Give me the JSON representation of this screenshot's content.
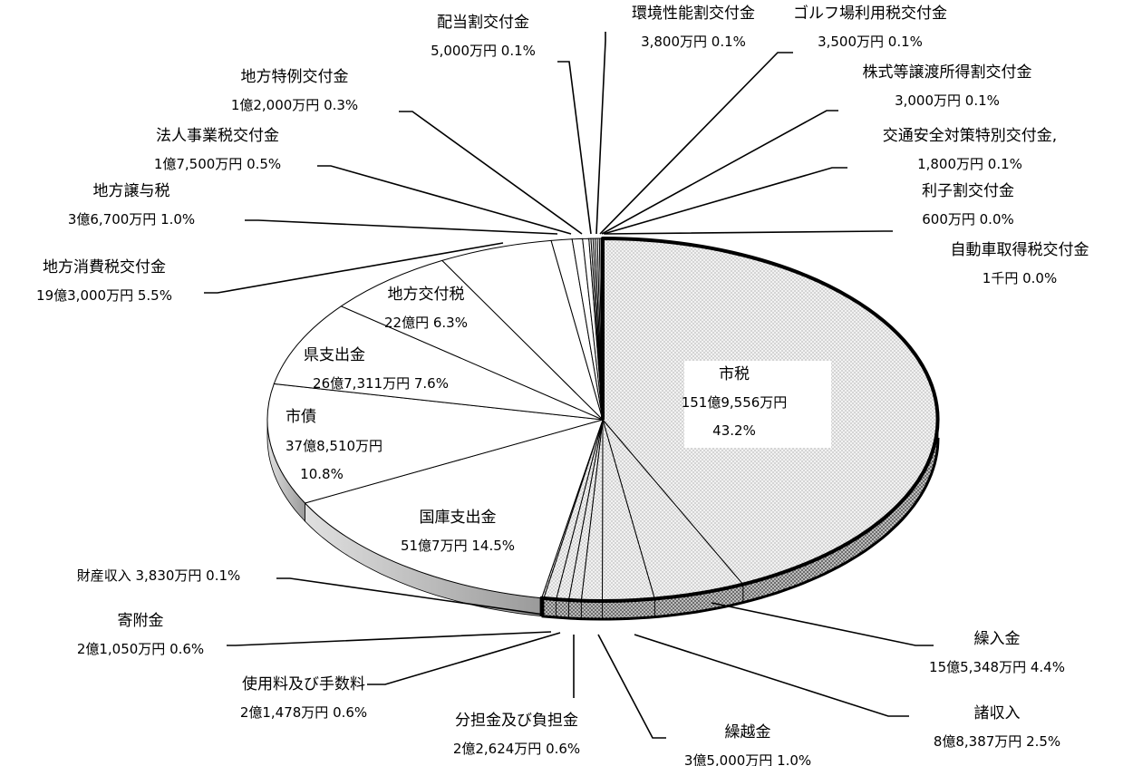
{
  "chart_data": {
    "type": "pie",
    "title": "",
    "slices": [
      {
        "name": "市税",
        "amount": "151億9,556万円",
        "percent": "43.2%",
        "value": 43.2
      },
      {
        "name": "繰入金",
        "amount": "15億5,348万円",
        "percent": "4.4%",
        "value": 4.4
      },
      {
        "name": "諸収入",
        "amount": "8億8,387万円",
        "percent": "2.5%",
        "value": 2.5
      },
      {
        "name": "繰越金",
        "amount": "3億5,000万円",
        "percent": "1.0%",
        "value": 1.0
      },
      {
        "name": "分担金及び負担金",
        "amount": "2億2,624万円",
        "percent": "0.6%",
        "value": 0.6
      },
      {
        "name": "使用料及び手数料",
        "amount": "2億1,478万円",
        "percent": "0.6%",
        "value": 0.6
      },
      {
        "name": "寄附金",
        "amount": "2億1,050万円",
        "percent": "0.6%",
        "value": 0.6
      },
      {
        "name": "財産収入",
        "amount": "3,830万円",
        "percent": "0.1%",
        "value": 0.1
      },
      {
        "name": "国庫支出金",
        "amount": "51億7万円",
        "percent": "14.5%",
        "value": 14.5
      },
      {
        "name": "市債",
        "amount": "37億8,510万円",
        "percent": "10.8%",
        "value": 10.8
      },
      {
        "name": "県支出金",
        "amount": "26億7,311万円",
        "percent": "7.6%",
        "value": 7.6
      },
      {
        "name": "地方交付税",
        "amount": "22億円",
        "percent": "6.3%",
        "value": 6.3
      },
      {
        "name": "地方消費税交付金",
        "amount": "19億3,000万円",
        "percent": "5.5%",
        "value": 5.5
      },
      {
        "name": "地方譲与税",
        "amount": "3億6,700万円",
        "percent": "1.0%",
        "value": 1.0
      },
      {
        "name": "法人事業税交付金",
        "amount": "1億7,500万円",
        "percent": "0.5%",
        "value": 0.5
      },
      {
        "name": "地方特例交付金",
        "amount": "1億2,000万円",
        "percent": "0.3%",
        "value": 0.3
      },
      {
        "name": "配当割交付金",
        "amount": "5,000万円",
        "percent": "0.1%",
        "value": 0.1
      },
      {
        "name": "環境性能割交付金",
        "amount": "3,800万円",
        "percent": "0.1%",
        "value": 0.1
      },
      {
        "name": "ゴルフ場利用税交付金",
        "amount": "3,500万円",
        "percent": "0.1%",
        "value": 0.1
      },
      {
        "name": "株式等譲渡所得割交付金",
        "amount": "3,000万円",
        "percent": "0.1%",
        "value": 0.1
      },
      {
        "name": "交通安全対策特別交付金,",
        "amount": "1,800万円",
        "percent": "0.1%",
        "value": 0.1
      },
      {
        "name": "利子割交付金",
        "amount": "600万円",
        "percent": "0.0%",
        "value": 0.0
      },
      {
        "name": "自動車取得税交付金",
        "amount": "1千円",
        "percent": "0.0%",
        "value": 0.0
      }
    ]
  }
}
